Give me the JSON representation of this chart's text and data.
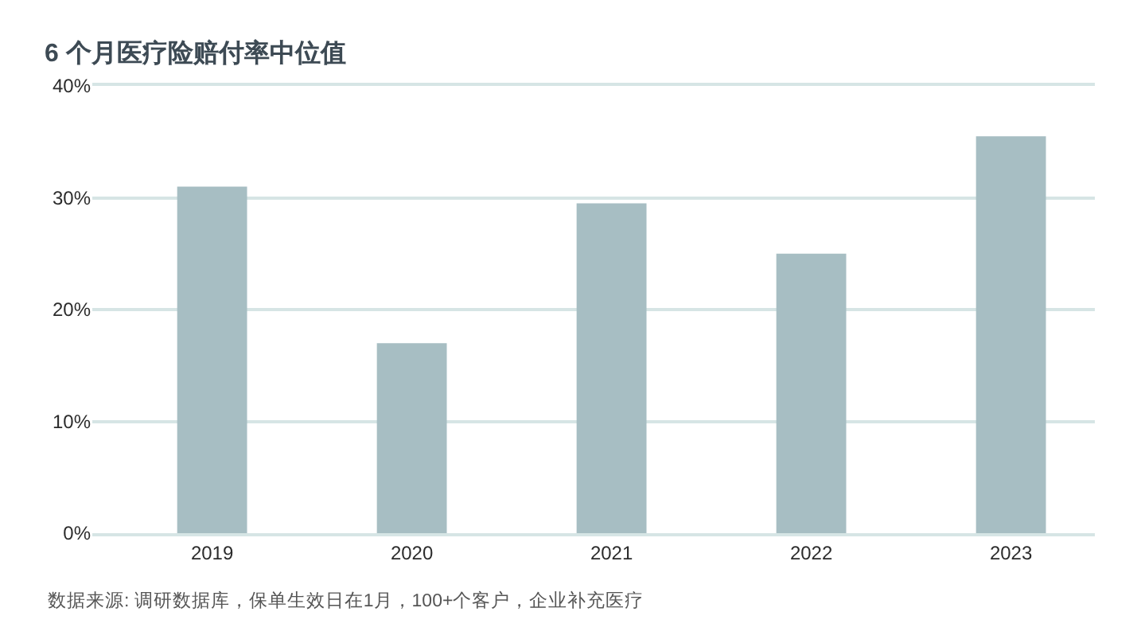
{
  "chart_data": {
    "type": "bar",
    "title": "6 个月医疗险赔付率中位值",
    "categories": [
      "2019",
      "2020",
      "2021",
      "2022",
      "2023"
    ],
    "values": [
      31,
      17,
      29.5,
      25,
      35.5
    ],
    "color": "#a7bec3",
    "ylim": [
      0,
      40
    ],
    "yticks": [
      {
        "value": 0,
        "label": "0%"
      },
      {
        "value": 10,
        "label": "10%"
      },
      {
        "value": 20,
        "label": "20%"
      },
      {
        "value": 30,
        "label": "30%"
      },
      {
        "value": 40,
        "label": "40%"
      }
    ],
    "grid": "y",
    "annotations": [
      "数据来源: 调研数据库，保单生效日在1月，100+个客户，企业补充医疗"
    ]
  }
}
